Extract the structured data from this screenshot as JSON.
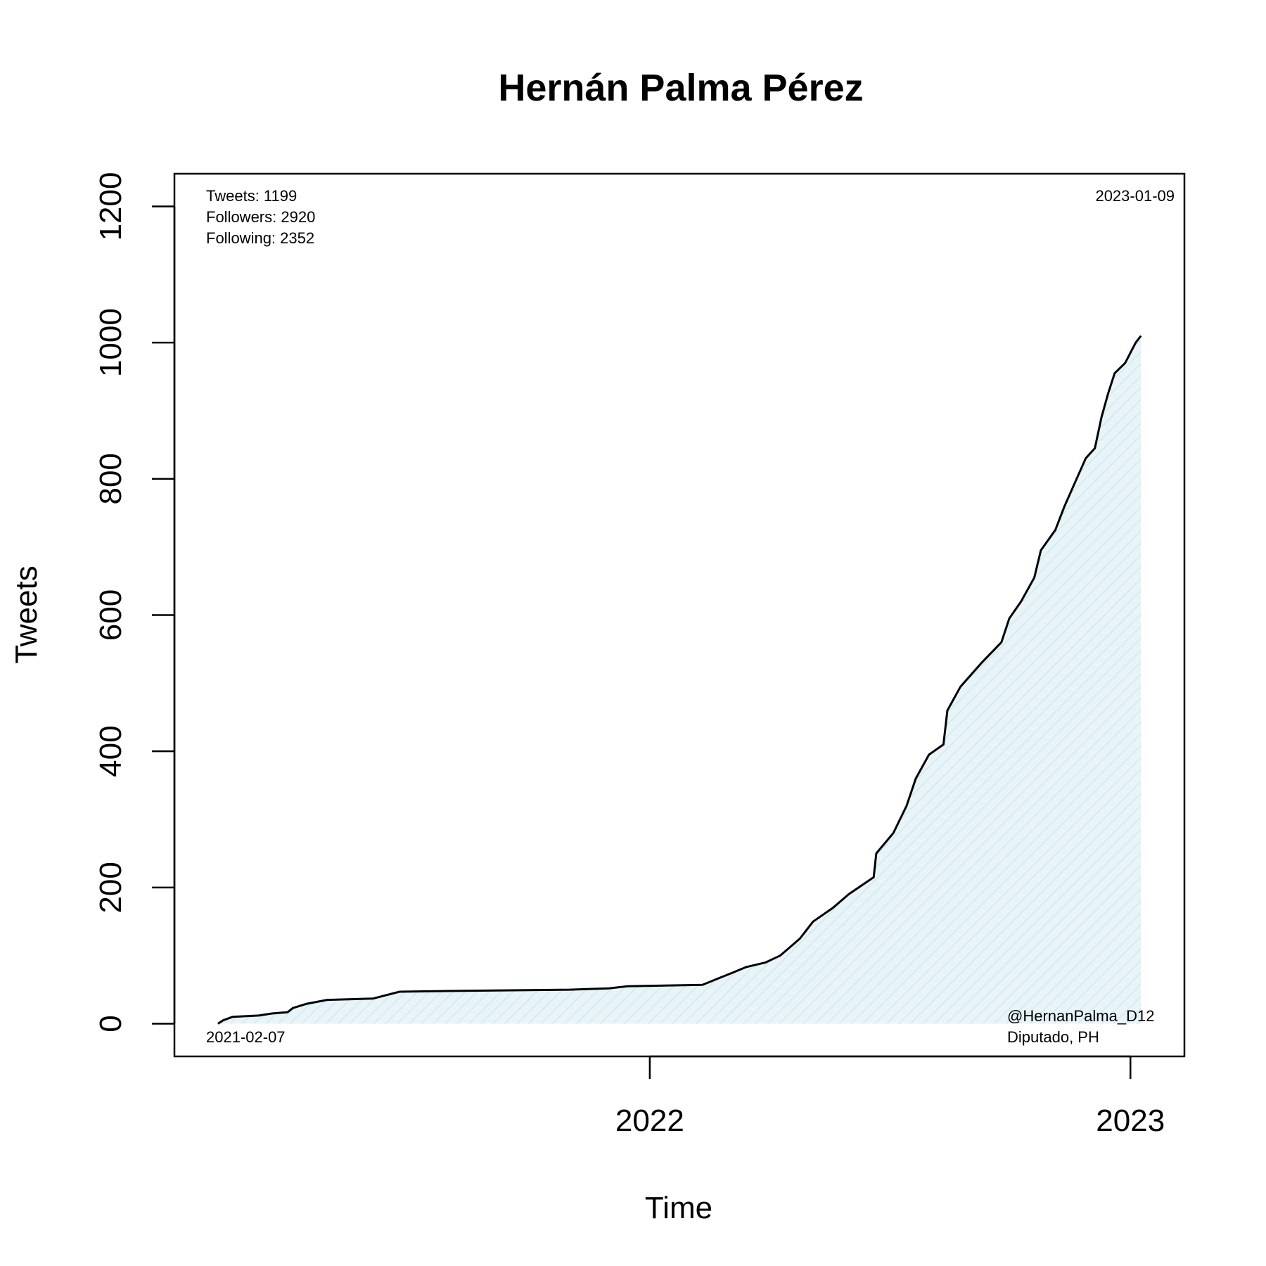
{
  "chart_data": {
    "type": "area",
    "title": "Hernán Palma Pérez",
    "xlabel": "Time",
    "ylabel": "Tweets",
    "x_ticks": [
      {
        "x": "2022-01-01",
        "label": "2022"
      },
      {
        "x": "2023-01-01",
        "label": "2023"
      }
    ],
    "y_ticks": [
      0,
      200,
      400,
      600,
      800,
      1000,
      1200
    ],
    "ylim": [
      -48,
      1248
    ],
    "xlim": [
      "2021-01-05",
      "2023-02-11"
    ],
    "grid": false,
    "colors": {
      "line": "#000000",
      "fill": "#e8f4f8",
      "hatch": "#d2e9f0"
    },
    "annotations": {
      "stats": [
        "Tweets: 1199",
        "Followers: 2920",
        "Following: 2352"
      ],
      "start_date": "2021-02-07",
      "end_date": "2023-01-09",
      "handle": "@HernanPalma_D12",
      "role": "Diputado, PH"
    },
    "series": [
      {
        "points": [
          [
            "2021-02-07",
            0
          ],
          [
            "2021-02-11",
            5
          ],
          [
            "2021-02-18",
            10
          ],
          [
            "2021-03-10",
            12
          ],
          [
            "2021-03-20",
            15
          ],
          [
            "2021-04-01",
            17
          ],
          [
            "2021-04-05",
            23
          ],
          [
            "2021-04-15",
            29
          ],
          [
            "2021-05-01",
            35
          ],
          [
            "2021-06-05",
            37
          ],
          [
            "2021-06-15",
            42
          ],
          [
            "2021-06-25",
            47
          ],
          [
            "2021-08-01",
            48
          ],
          [
            "2021-11-01",
            50
          ],
          [
            "2021-12-01",
            52
          ],
          [
            "2021-12-15",
            55
          ],
          [
            "2022-02-10",
            57
          ],
          [
            "2022-02-20",
            65
          ],
          [
            "2022-03-05",
            75
          ],
          [
            "2022-03-15",
            83
          ],
          [
            "2022-03-30",
            90
          ],
          [
            "2022-04-10",
            100
          ],
          [
            "2022-04-25",
            125
          ],
          [
            "2022-05-05",
            150
          ],
          [
            "2022-05-20",
            170
          ],
          [
            "2022-06-01",
            190
          ],
          [
            "2022-06-20",
            215
          ],
          [
            "2022-06-22",
            250
          ],
          [
            "2022-07-05",
            280
          ],
          [
            "2022-07-15",
            320
          ],
          [
            "2022-07-22",
            360
          ],
          [
            "2022-08-01",
            395
          ],
          [
            "2022-08-12",
            410
          ],
          [
            "2022-08-15",
            460
          ],
          [
            "2022-08-25",
            495
          ],
          [
            "2022-09-10",
            530
          ],
          [
            "2022-09-25",
            560
          ],
          [
            "2022-10-01",
            595
          ],
          [
            "2022-10-10",
            620
          ],
          [
            "2022-10-20",
            655
          ],
          [
            "2022-10-25",
            695
          ],
          [
            "2022-11-05",
            725
          ],
          [
            "2022-11-12",
            760
          ],
          [
            "2022-11-20",
            795
          ],
          [
            "2022-11-28",
            830
          ],
          [
            "2022-12-05",
            845
          ],
          [
            "2022-12-10",
            890
          ],
          [
            "2022-12-15",
            925
          ],
          [
            "2022-12-20",
            955
          ],
          [
            "2022-12-28",
            970
          ],
          [
            "2023-01-01",
            985
          ],
          [
            "2023-01-05",
            1000
          ],
          [
            "2023-01-09",
            1010
          ]
        ]
      }
    ]
  }
}
